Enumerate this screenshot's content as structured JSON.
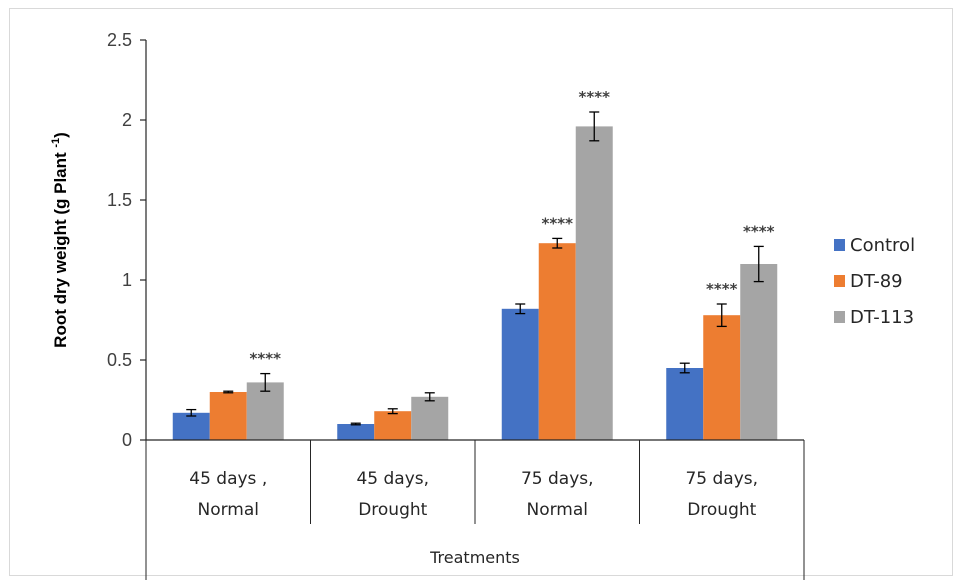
{
  "chart_data": {
    "type": "bar",
    "xlabel": "Treatments",
    "ylabel_main": "Root dry weight (g Plant ",
    "ylabel_sup": "-1",
    "ylabel_end": ")",
    "ylim": [
      0,
      2.5
    ],
    "yticks": [
      {
        "value": 0,
        "label": "0"
      },
      {
        "value": 0.5,
        "label": "0.5"
      },
      {
        "value": 1,
        "label": "1"
      },
      {
        "value": 1.5,
        "label": "1.5"
      },
      {
        "value": 2,
        "label": "2"
      },
      {
        "value": 2.5,
        "label": "2.5"
      }
    ],
    "categories": [
      {
        "line1": "45 days ,",
        "line2": "Normal"
      },
      {
        "line1": "45 days,",
        "line2": "Drought"
      },
      {
        "line1": "75 days,",
        "line2": "Normal"
      },
      {
        "line1": "75 days,",
        "line2": "Drought"
      }
    ],
    "series": [
      {
        "name": "Control",
        "color": "#4472C4",
        "values": [
          0.17,
          0.1,
          0.82,
          0.45
        ],
        "errors": [
          0.02,
          0.005,
          0.03,
          0.03
        ],
        "significance": [
          "",
          "",
          "",
          ""
        ]
      },
      {
        "name": "DT-89",
        "color": "#ED7D31",
        "values": [
          0.3,
          0.18,
          1.23,
          0.78
        ],
        "errors": [
          0.005,
          0.015,
          0.03,
          0.07
        ],
        "significance": [
          "",
          "",
          "****",
          "****"
        ]
      },
      {
        "name": "DT-113",
        "color": "#A5A5A5",
        "values": [
          0.36,
          0.27,
          1.96,
          1.1
        ],
        "errors": [
          0.055,
          0.025,
          0.09,
          0.11
        ],
        "significance": [
          "****",
          "",
          "****",
          "****"
        ]
      }
    ],
    "legend_position": "right",
    "grid": false
  }
}
